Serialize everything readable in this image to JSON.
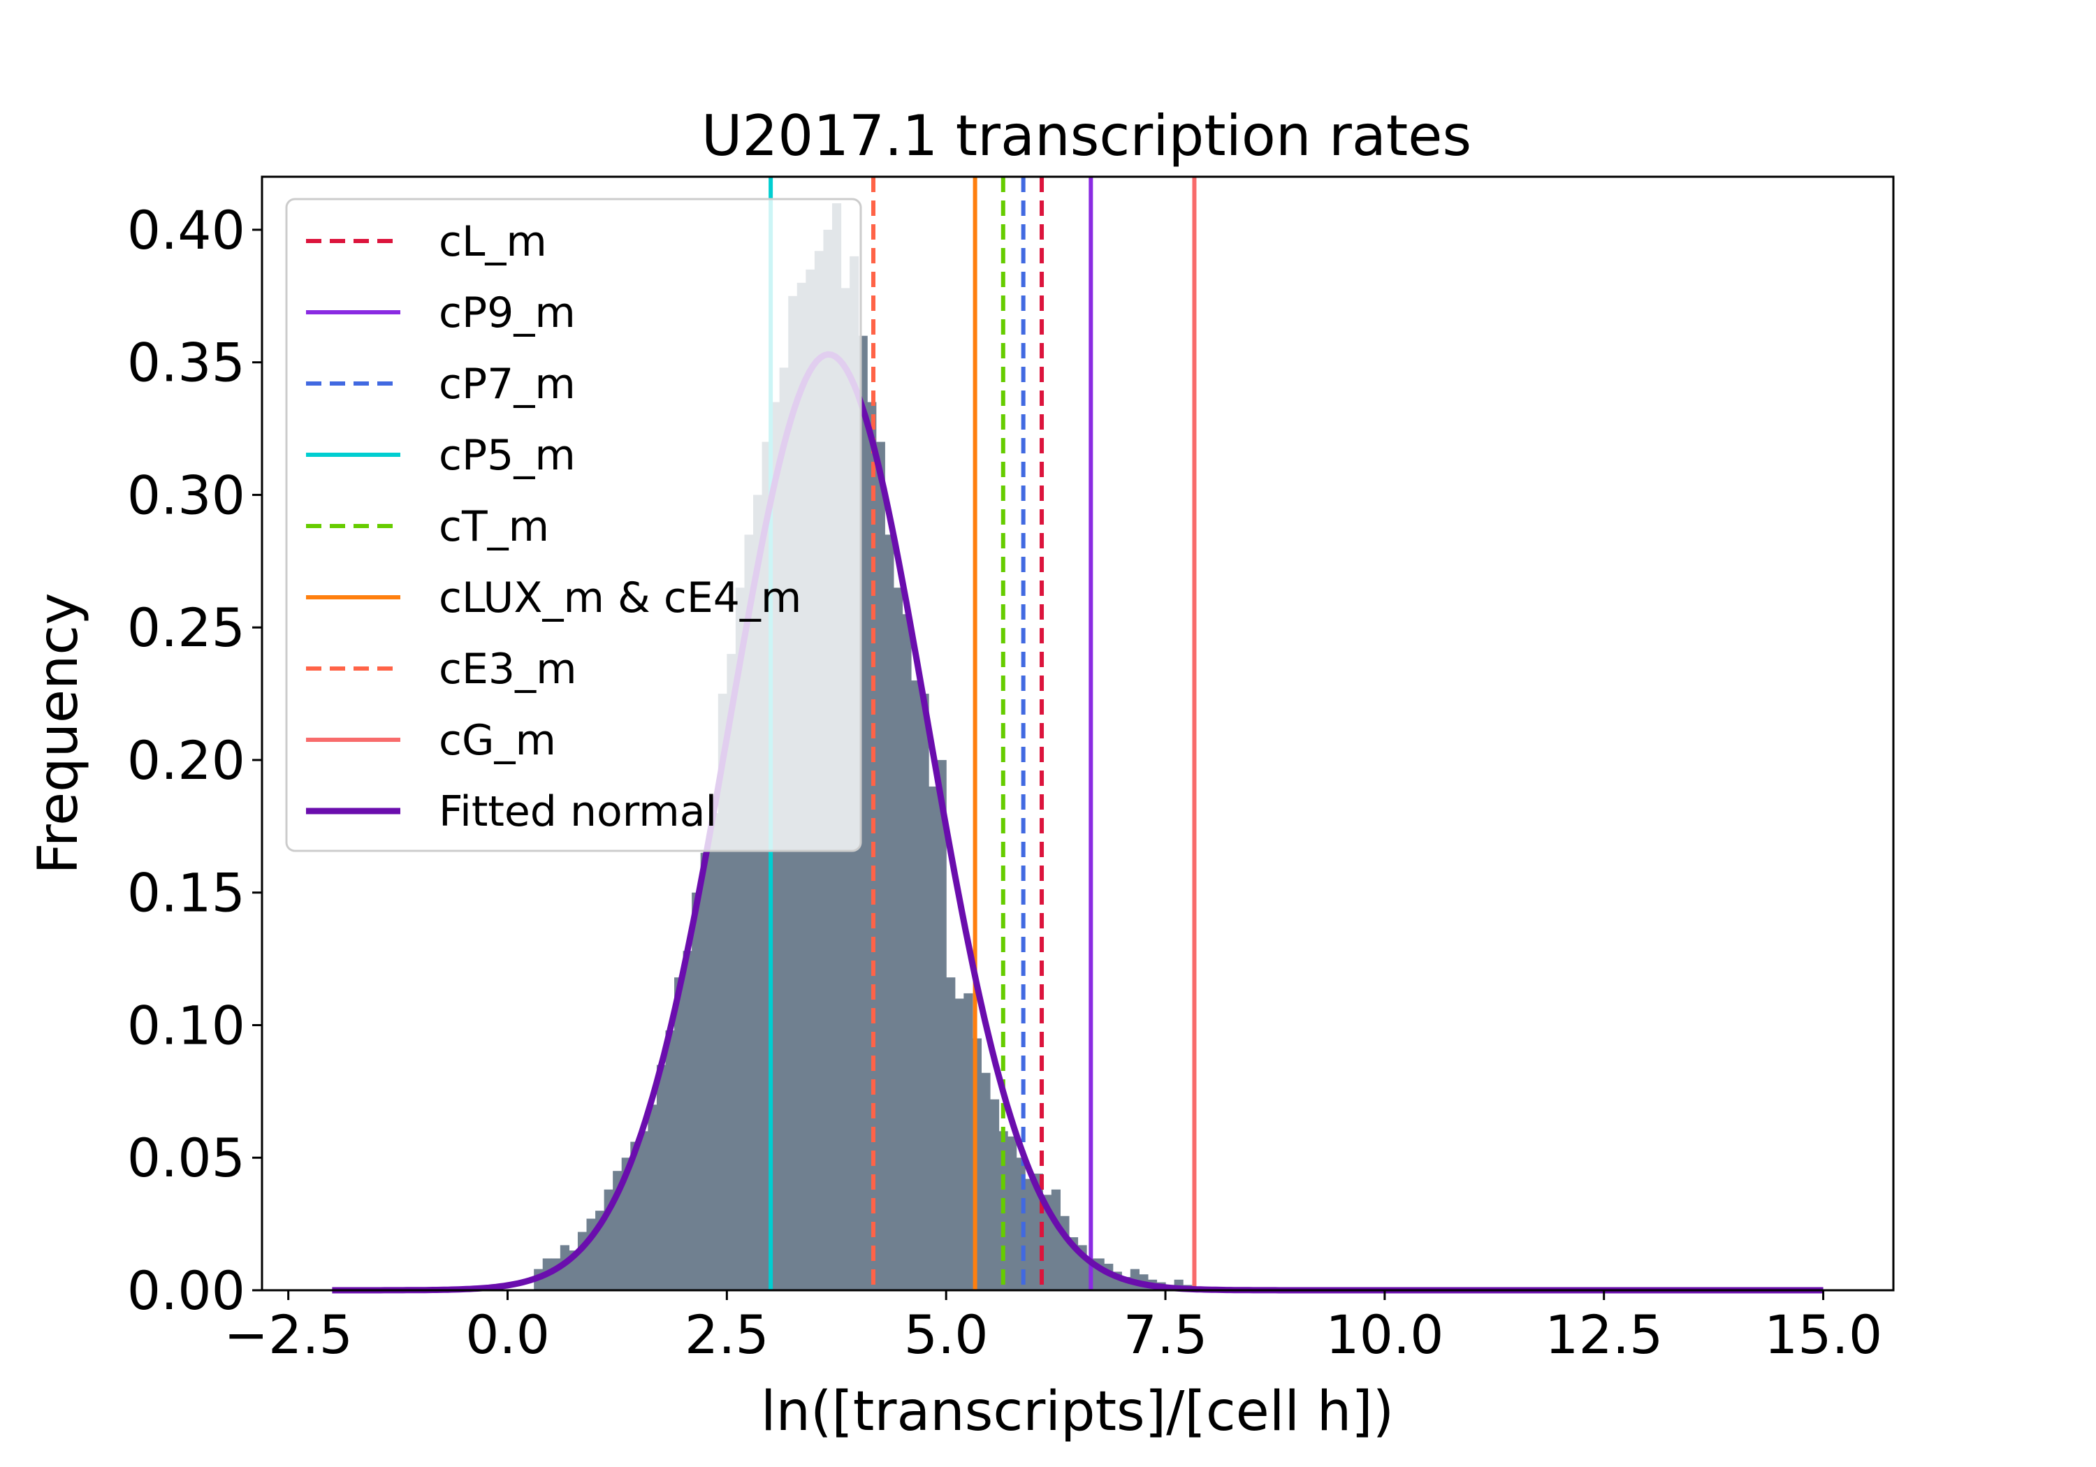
{
  "chart_data": {
    "type": "histogram",
    "title": "U2017.1 transcription rates",
    "xlabel": "ln([transcripts]/[cell h])",
    "ylabel": "Frequency",
    "xlim": [
      -2.8,
      15.8
    ],
    "ylim": [
      0,
      0.42
    ],
    "xticks": [
      -2.5,
      0.0,
      2.5,
      5.0,
      7.5,
      10.0,
      12.5,
      15.0
    ],
    "xtick_labels": [
      "−2.5",
      "0.0",
      "2.5",
      "5.0",
      "7.5",
      "10.0",
      "12.5",
      "15.0"
    ],
    "yticks": [
      0.0,
      0.05,
      0.1,
      0.15,
      0.2,
      0.25,
      0.3,
      0.35,
      0.4
    ],
    "ytick_labels": [
      "0.00",
      "0.05",
      "0.10",
      "0.15",
      "0.20",
      "0.25",
      "0.30",
      "0.35",
      "0.40"
    ],
    "grid": false,
    "legend_position": "upper-left",
    "histogram": {
      "color": "#708090",
      "bin_width": 0.1,
      "bins": [
        [
          0.3,
          0.008
        ],
        [
          0.4,
          0.012
        ],
        [
          0.5,
          0.012
        ],
        [
          0.6,
          0.017
        ],
        [
          0.7,
          0.015
        ],
        [
          0.8,
          0.022
        ],
        [
          0.9,
          0.027
        ],
        [
          1.0,
          0.03
        ],
        [
          1.1,
          0.038
        ],
        [
          1.2,
          0.045
        ],
        [
          1.3,
          0.05
        ],
        [
          1.4,
          0.056
        ],
        [
          1.5,
          0.06
        ],
        [
          1.6,
          0.07
        ],
        [
          1.7,
          0.085
        ],
        [
          1.8,
          0.098
        ],
        [
          1.9,
          0.118
        ],
        [
          2.0,
          0.128
        ],
        [
          2.1,
          0.15
        ],
        [
          2.2,
          0.165
        ],
        [
          2.3,
          0.18
        ],
        [
          2.4,
          0.225
        ],
        [
          2.5,
          0.24
        ],
        [
          2.6,
          0.265
        ],
        [
          2.7,
          0.285
        ],
        [
          2.8,
          0.3
        ],
        [
          2.9,
          0.32
        ],
        [
          3.0,
          0.335
        ],
        [
          3.1,
          0.348
        ],
        [
          3.2,
          0.375
        ],
        [
          3.3,
          0.38
        ],
        [
          3.4,
          0.385
        ],
        [
          3.5,
          0.392
        ],
        [
          3.6,
          0.4
        ],
        [
          3.7,
          0.41
        ],
        [
          3.8,
          0.378
        ],
        [
          3.9,
          0.39
        ],
        [
          4.0,
          0.36
        ],
        [
          4.1,
          0.335
        ],
        [
          4.2,
          0.32
        ],
        [
          4.3,
          0.285
        ],
        [
          4.4,
          0.265
        ],
        [
          4.5,
          0.255
        ],
        [
          4.6,
          0.23
        ],
        [
          4.7,
          0.225
        ],
        [
          4.8,
          0.19
        ],
        [
          4.9,
          0.2
        ],
        [
          5.0,
          0.118
        ],
        [
          5.1,
          0.11
        ],
        [
          5.2,
          0.112
        ],
        [
          5.3,
          0.095
        ],
        [
          5.4,
          0.082
        ],
        [
          5.5,
          0.072
        ],
        [
          5.6,
          0.06
        ],
        [
          5.7,
          0.058
        ],
        [
          5.8,
          0.05
        ],
        [
          5.9,
          0.042
        ],
        [
          6.0,
          0.044
        ],
        [
          6.1,
          0.036
        ],
        [
          6.2,
          0.038
        ],
        [
          6.3,
          0.028
        ],
        [
          6.4,
          0.02
        ],
        [
          6.5,
          0.017
        ],
        [
          6.6,
          0.012
        ],
        [
          6.7,
          0.012
        ],
        [
          6.8,
          0.01
        ],
        [
          6.9,
          0.007
        ],
        [
          7.0,
          0.005
        ],
        [
          7.1,
          0.008
        ],
        [
          7.2,
          0.006
        ],
        [
          7.3,
          0.004
        ],
        [
          7.4,
          0.003
        ],
        [
          7.5,
          0.002
        ],
        [
          7.6,
          0.004
        ],
        [
          7.7,
          0.002
        ]
      ]
    },
    "fitted_normal": {
      "label": "Fitted normal",
      "color": "#6a0dad",
      "mean": 3.66,
      "std": 1.13,
      "peak": 0.353,
      "x_range": [
        -2.0,
        15.0
      ]
    },
    "vlines": [
      {
        "label": "cL_m",
        "x": 6.09,
        "color": "#dc143c",
        "style": "dashed"
      },
      {
        "label": "cP9_m",
        "x": 6.65,
        "color": "#8a2be2",
        "style": "solid"
      },
      {
        "label": "cP7_m",
        "x": 5.88,
        "color": "#4169e1",
        "style": "dashed"
      },
      {
        "label": "cP5_m",
        "x": 3.0,
        "color": "#00ced1",
        "style": "solid"
      },
      {
        "label": "cT_m",
        "x": 5.65,
        "color": "#66cc00",
        "style": "dashed"
      },
      {
        "label": "cLUX_m & cE4_m",
        "x": 5.33,
        "color": "#ff7f0e",
        "style": "solid"
      },
      {
        "label": "cE3_m",
        "x": 4.17,
        "color": "#ff6347",
        "style": "dashed"
      },
      {
        "label": "cG_m",
        "x": 7.83,
        "color": "#f86b6b",
        "style": "solid"
      }
    ]
  }
}
